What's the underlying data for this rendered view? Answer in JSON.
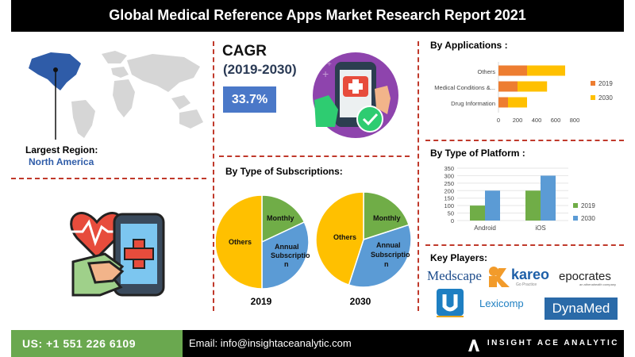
{
  "title": "Global Medical Reference Apps Market Research Report 2021",
  "cagr": {
    "label": "CAGR",
    "period": "(2019-2030)",
    "value": "33.7%"
  },
  "region": {
    "label": "Largest Region:",
    "value": "North America"
  },
  "sections": {
    "applications": "By Applications :",
    "platform": "By Type of Platform :",
    "subscriptions": "By Type of Subscriptions:",
    "players": "Key Players:"
  },
  "chart_data": [
    {
      "type": "bar",
      "orientation": "horizontal",
      "categories": [
        "Others",
        "Medical Conditions &...",
        "Drug Information"
      ],
      "series": [
        {
          "name": "2019",
          "values": [
            300,
            200,
            100
          ]
        },
        {
          "name": "2030",
          "values": [
            400,
            310,
            200
          ]
        }
      ],
      "stacked": true,
      "xlim": [
        0,
        800
      ],
      "xticks": [
        "0",
        "200",
        "400",
        "600",
        "800"
      ],
      "legend": "right",
      "colors": [
        "#ed7d31",
        "#ffc000"
      ]
    },
    {
      "type": "bar",
      "categories": [
        "Android",
        "iOS"
      ],
      "series": [
        {
          "name": "2019",
          "values": [
            100,
            200
          ]
        },
        {
          "name": "2030",
          "values": [
            200,
            300
          ]
        }
      ],
      "ylim": [
        0,
        350
      ],
      "yticks": [
        "0",
        "50",
        "100",
        "150",
        "200",
        "250",
        "300",
        "350"
      ],
      "legend": "right",
      "grid": true,
      "colors": [
        "#70ad47",
        "#5b9bd5"
      ]
    },
    {
      "type": "pie",
      "label": "2019",
      "slices": [
        {
          "name": "Monthly",
          "value": 18
        },
        {
          "name": "Annual Subscription",
          "value": 32
        },
        {
          "name": "Others",
          "value": 50
        }
      ],
      "colors": [
        "#70ad47",
        "#5b9bd5",
        "#ffc000"
      ]
    },
    {
      "type": "pie",
      "label": "2030",
      "slices": [
        {
          "name": "Monthly",
          "value": 20
        },
        {
          "name": "Annual Subscription",
          "value": 35
        },
        {
          "name": "Others",
          "value": 45
        }
      ],
      "colors": [
        "#70ad47",
        "#5b9bd5",
        "#ffc000"
      ]
    }
  ],
  "pie_labels": {
    "monthly": "Monthly",
    "annual_1": "Annual",
    "annual_2": "Subscriptio",
    "annual_3": "n",
    "others": "Others"
  },
  "players": [
    "Medscape",
    "kareo",
    "epocrates",
    "Lexicomp",
    "DynaMed"
  ],
  "player_taglines": {
    "kareo": "Go Practice",
    "epocrates": "an athenahealth company"
  },
  "footer": {
    "phone": "US: +1 551 226 6109",
    "email": "Email: info@insightaceanalytic.com",
    "brand": "INSIGHT ACE ANALYTIC"
  }
}
